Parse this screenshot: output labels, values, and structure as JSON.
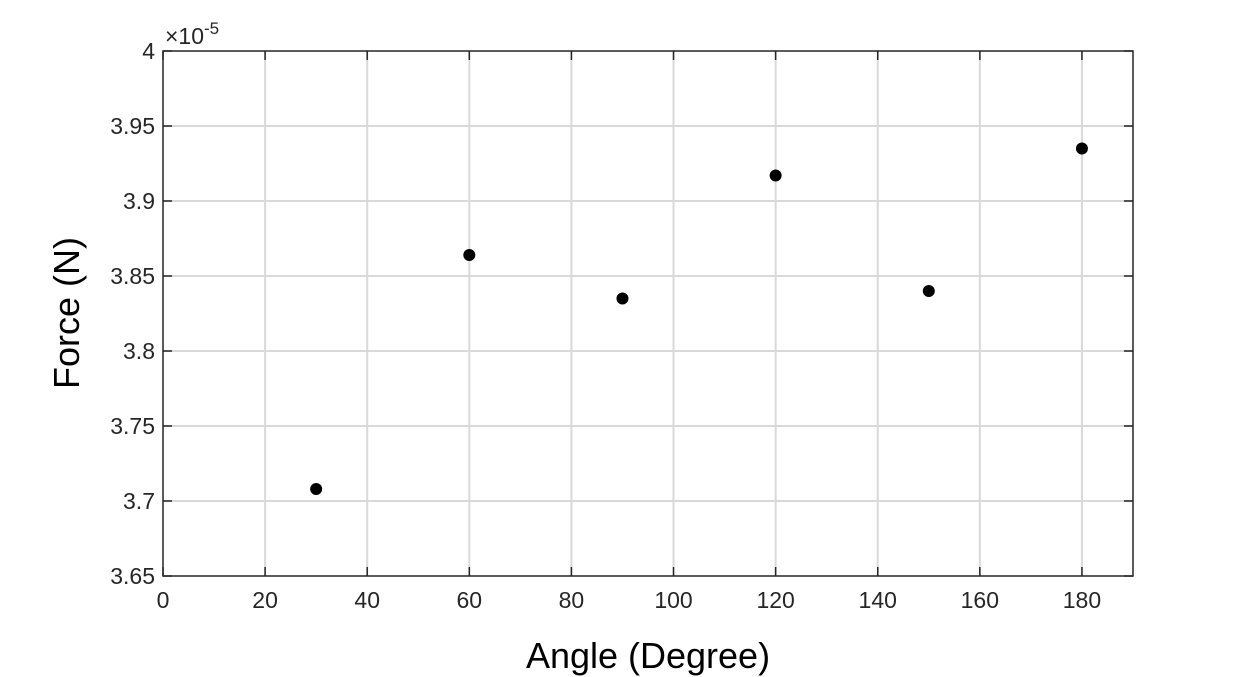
{
  "chart_data": {
    "type": "scatter",
    "title": "",
    "xlabel": "Angle (Degree)",
    "ylabel": "Force (N)",
    "y_exponent_multiplier": "×10",
    "y_exponent_power": "-5",
    "xlim": [
      0,
      190
    ],
    "ylim": [
      3.65,
      4.0
    ],
    "x_ticks": [
      0,
      20,
      40,
      60,
      80,
      100,
      120,
      140,
      160,
      180
    ],
    "y_ticks": [
      3.65,
      3.7,
      3.75,
      3.8,
      3.85,
      3.9,
      3.95,
      4.0
    ],
    "x_tick_labels": [
      "0",
      "20",
      "40",
      "60",
      "80",
      "100",
      "120",
      "140",
      "160",
      "180"
    ],
    "y_tick_labels": [
      "3.65",
      "3.7",
      "3.75",
      "3.8",
      "3.85",
      "3.9",
      "3.95",
      "4"
    ],
    "grid": true,
    "marker_color": "#000000",
    "points": [
      {
        "x": 30,
        "y": 3.708
      },
      {
        "x": 60,
        "y": 3.864
      },
      {
        "x": 90,
        "y": 3.835
      },
      {
        "x": 120,
        "y": 3.917
      },
      {
        "x": 150,
        "y": 3.84
      },
      {
        "x": 180,
        "y": 3.935
      }
    ]
  }
}
